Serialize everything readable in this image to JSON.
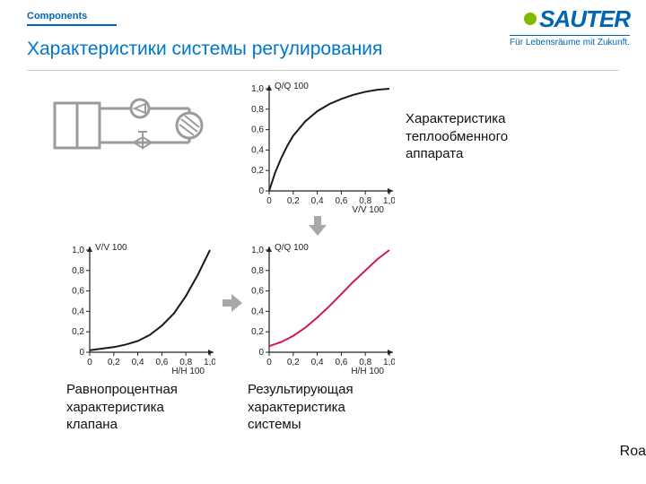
{
  "header": {
    "components_label": "Components",
    "title": "Характеристики системы регулирования",
    "logo_text": "SAUTER",
    "logo_tagline": "Für Lebensräume mit Zukunft.",
    "logo_color": "#0066b3",
    "logo_dot_color": "#7fba00"
  },
  "layout": {
    "background": "#ffffff",
    "rule_color": "#cccccc"
  },
  "schematic": {
    "stroke": "#9b9b9b",
    "stroke_width": 3
  },
  "chart_common": {
    "axis_color": "#222222",
    "tick_color": "#222222",
    "tick_labels_x": [
      "0",
      "0,2",
      "0,4",
      "0,6",
      "0,8",
      "1,0"
    ],
    "tick_labels_y": [
      "0",
      "0,2",
      "0,4",
      "0,6",
      "0,8",
      "1,0"
    ],
    "xlim": [
      0,
      1
    ],
    "ylim": [
      0,
      1
    ],
    "tick_step": 0.2,
    "line_width": 2
  },
  "chart_heat": {
    "axis_label_x": "V/V 100",
    "axis_label_y": "Q/Q 100",
    "curve_color": "#1a1a1a",
    "points": [
      [
        0,
        0
      ],
      [
        0.05,
        0.18
      ],
      [
        0.1,
        0.32
      ],
      [
        0.15,
        0.44
      ],
      [
        0.2,
        0.54
      ],
      [
        0.3,
        0.68
      ],
      [
        0.4,
        0.78
      ],
      [
        0.5,
        0.85
      ],
      [
        0.6,
        0.9
      ],
      [
        0.7,
        0.94
      ],
      [
        0.8,
        0.97
      ],
      [
        0.9,
        0.99
      ],
      [
        1.0,
        1.0
      ]
    ]
  },
  "chart_valve": {
    "axis_label_x": "H/H 100",
    "axis_label_y": "V/V 100",
    "curve_color": "#1a1a1a",
    "points": [
      [
        0,
        0.02
      ],
      [
        0.1,
        0.035
      ],
      [
        0.2,
        0.05
      ],
      [
        0.3,
        0.075
      ],
      [
        0.4,
        0.11
      ],
      [
        0.5,
        0.17
      ],
      [
        0.6,
        0.26
      ],
      [
        0.7,
        0.38
      ],
      [
        0.8,
        0.55
      ],
      [
        0.9,
        0.76
      ],
      [
        1.0,
        1.0
      ]
    ]
  },
  "chart_result": {
    "axis_label_x": "H/H 100",
    "axis_label_y": "Q/Q 100",
    "curve_color": "#d4145a",
    "points": [
      [
        0,
        0.06
      ],
      [
        0.1,
        0.1
      ],
      [
        0.2,
        0.16
      ],
      [
        0.3,
        0.24
      ],
      [
        0.4,
        0.34
      ],
      [
        0.5,
        0.45
      ],
      [
        0.6,
        0.57
      ],
      [
        0.7,
        0.69
      ],
      [
        0.8,
        0.8
      ],
      [
        0.9,
        0.91
      ],
      [
        1.0,
        1.0
      ]
    ]
  },
  "labels": {
    "heat_exchanger": "Характеристика\nтеплообменного\nаппарата",
    "valve": "Равнопроцентная\nхарактеристика\nклапана",
    "result": "Результирующая\nхарактеристика\nсистемы"
  },
  "arrow": {
    "color": "#a8a8a8"
  },
  "footer_cut_text": "Roa"
}
